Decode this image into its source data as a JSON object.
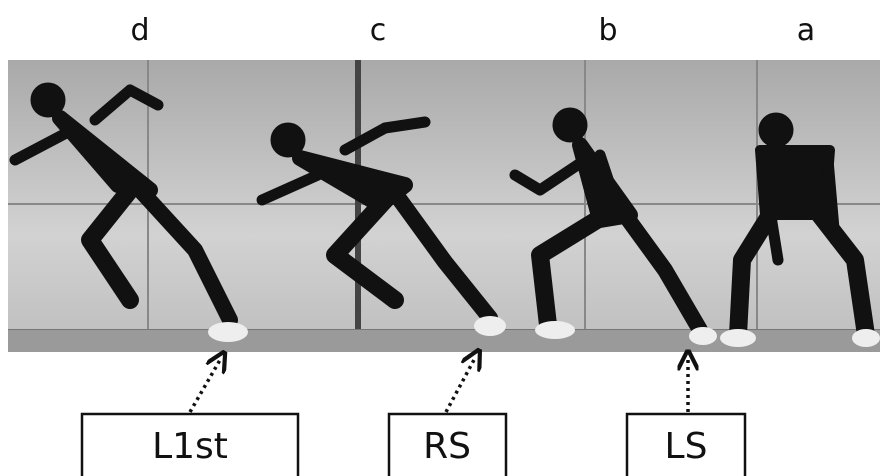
{
  "panels": [
    {
      "label": "d"
    },
    {
      "label": "c"
    },
    {
      "label": "b"
    },
    {
      "label": "a"
    }
  ],
  "callouts": [
    {
      "label": "L1st"
    },
    {
      "label": "RS"
    },
    {
      "label": "LS"
    }
  ]
}
